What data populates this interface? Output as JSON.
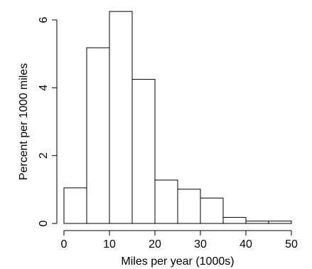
{
  "chart_data": {
    "type": "bar",
    "title": "",
    "xlabel": "Miles per year (1000s)",
    "ylabel": "Percent per 1000 miles",
    "bins": [
      {
        "start": 0,
        "end": 5,
        "value": 1.05
      },
      {
        "start": 5,
        "end": 10,
        "value": 5.18
      },
      {
        "start": 10,
        "end": 15,
        "value": 6.25
      },
      {
        "start": 15,
        "end": 20,
        "value": 4.25
      },
      {
        "start": 20,
        "end": 25,
        "value": 1.28
      },
      {
        "start": 25,
        "end": 30,
        "value": 1.01
      },
      {
        "start": 30,
        "end": 35,
        "value": 0.75
      },
      {
        "start": 35,
        "end": 40,
        "value": 0.18
      },
      {
        "start": 40,
        "end": 45,
        "value": 0.07
      },
      {
        "start": 45,
        "end": 50,
        "value": 0.07
      }
    ],
    "xlim": [
      0,
      50
    ],
    "ylim": [
      0,
      6.5
    ],
    "xticks": [
      0,
      10,
      20,
      30,
      40,
      50
    ],
    "yticks": [
      0,
      2,
      4,
      6
    ],
    "xtick_labels": [
      "0",
      "10",
      "20",
      "30",
      "40",
      "50"
    ],
    "ytick_labels": [
      "0",
      "2",
      "4",
      "6"
    ],
    "grid": false,
    "legend": "none"
  }
}
